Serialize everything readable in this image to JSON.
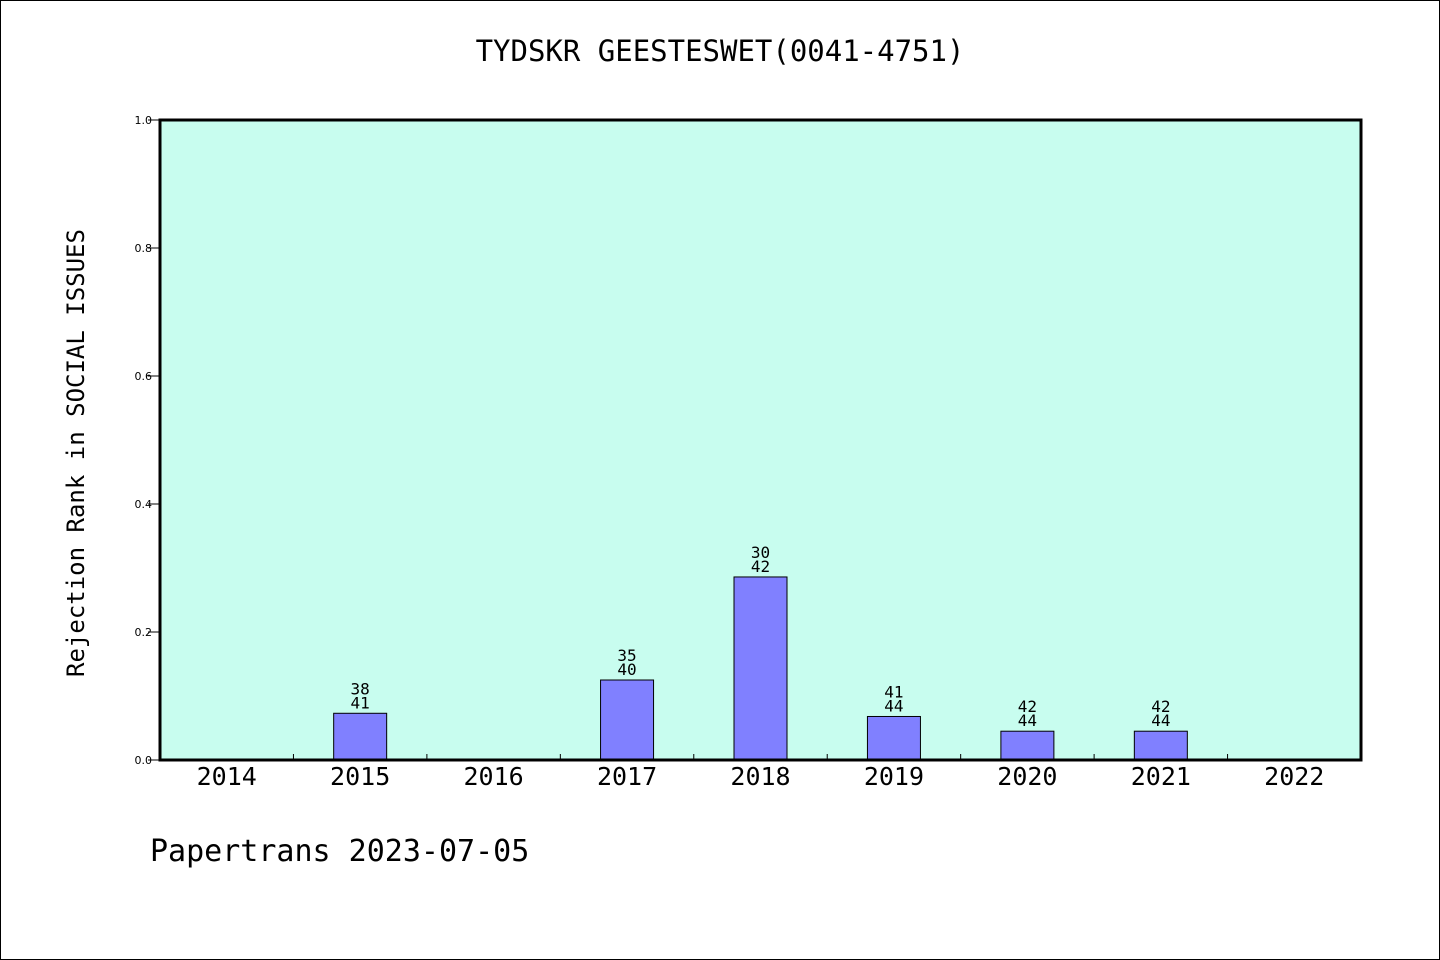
{
  "chart_data": {
    "type": "bar",
    "title": "TYDSKR GEESTESWET(0041-4751)",
    "xlabel": "",
    "ylabel": "Rejection Rank in SOCIAL ISSUES",
    "ylim": [
      0,
      1.0
    ],
    "yticks": [
      "0.0",
      "0.2",
      "0.4",
      "0.6",
      "0.8",
      "1.0"
    ],
    "categories": [
      "2014",
      "2015",
      "2016",
      "2017",
      "2018",
      "2019",
      "2020",
      "2021",
      "2022"
    ],
    "values": [
      0,
      0.073,
      0,
      0.125,
      0.286,
      0.068,
      0.045,
      0.045,
      0
    ],
    "bar_labels": [
      null,
      [
        "38",
        "41"
      ],
      null,
      [
        "35",
        "40"
      ],
      [
        "30",
        "42"
      ],
      [
        "41",
        "44"
      ],
      [
        "42",
        "44"
      ],
      [
        "42",
        "44"
      ],
      null
    ],
    "grid": false,
    "colors": {
      "plot_background": "#c8fdef",
      "bar_fill": "#8080ff",
      "bar_stroke": "#000000"
    }
  },
  "footer": {
    "text": "Papertrans 2023-07-05"
  }
}
